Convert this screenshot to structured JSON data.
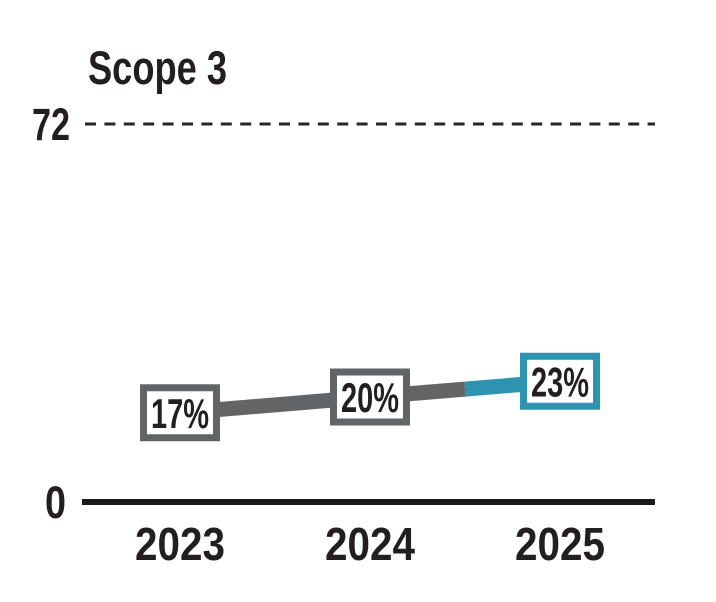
{
  "chart_data": {
    "type": "line",
    "title": "Scope 3",
    "categories": [
      "2023",
      "2024",
      "2025"
    ],
    "series": [
      {
        "name": "Scope 3",
        "values": [
          17,
          20,
          23
        ]
      }
    ],
    "point_labels": [
      "17%",
      "20%",
      "23%"
    ],
    "ylim": [
      0,
      72
    ],
    "y_ticks": [
      {
        "value": 0,
        "label": "0"
      },
      {
        "value": 72,
        "label": "72"
      }
    ],
    "reference_line": {
      "value": 72,
      "style": "dashed"
    },
    "xlabel": "",
    "ylabel": "",
    "legend": "none",
    "grid": "off",
    "highlight_last": true,
    "colors": {
      "historical": "#636466",
      "highlight": "#2e93b0",
      "text": "#231f20",
      "axis": "#1a1a1a",
      "reference": "#262626",
      "box_fill": "#ffffff"
    }
  }
}
